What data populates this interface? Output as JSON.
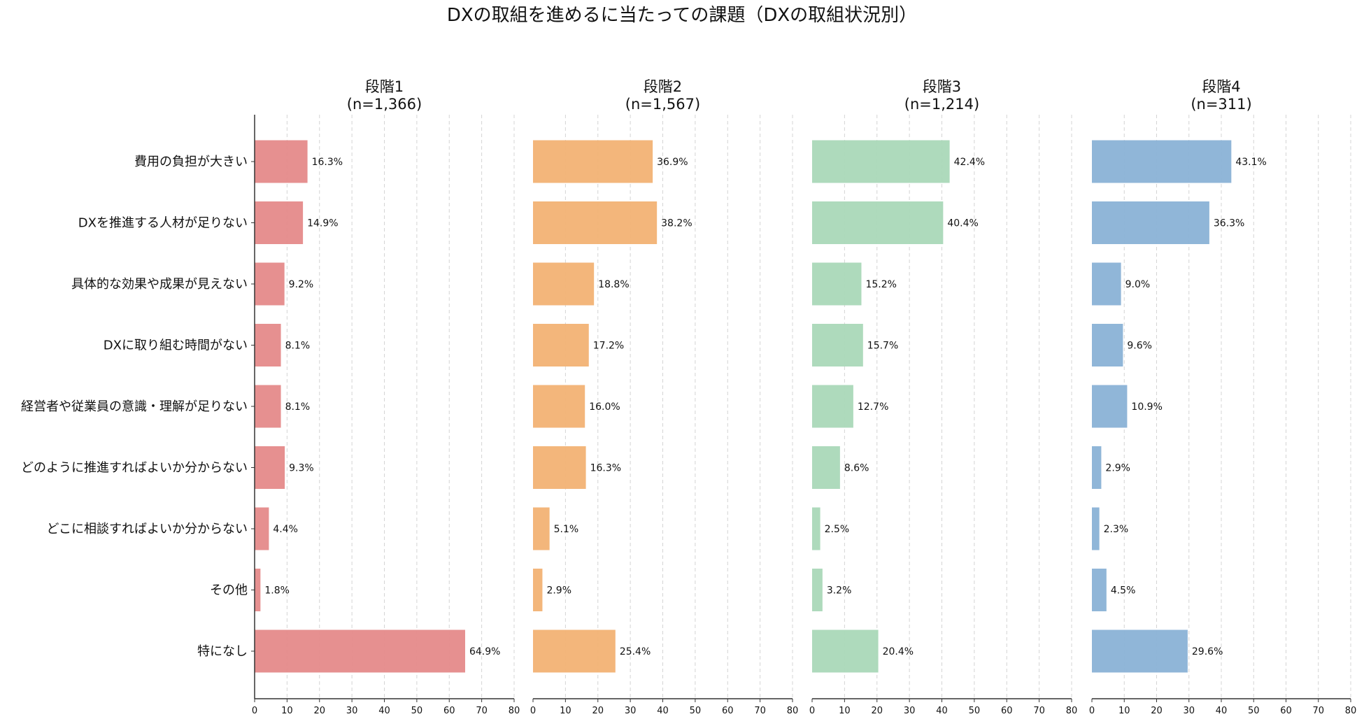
{
  "chart_data": {
    "type": "bar",
    "orientation": "horizontal",
    "title": "DXの取組を進めるに当たっての課題（DXの取組状況別）",
    "categories": [
      "費用の負担が大きい",
      "DXを推進する人材が足りない",
      "具体的な効果や成果が見えない",
      "DXに取り組む時間がない",
      "経営者や従業員の意識・理解が足りない",
      "どのように推進すればよいか分からない",
      "どこに相談すればよいか分からない",
      "その他",
      "特になし"
    ],
    "xlim": [
      0,
      80
    ],
    "xticks": [
      0,
      10,
      20,
      30,
      40,
      50,
      60,
      70,
      80
    ],
    "grid": "vertical dashed",
    "value_suffix": "%",
    "panels": [
      {
        "title": "段階1",
        "subtitle": "(n=1,366)",
        "color": "#e58a8a",
        "values": [
          16.3,
          14.9,
          9.2,
          8.1,
          8.1,
          9.3,
          4.4,
          1.8,
          64.9
        ]
      },
      {
        "title": "段階2",
        "subtitle": "(n=1,567)",
        "color": "#f2b274",
        "values": [
          36.9,
          38.2,
          18.8,
          17.2,
          16.0,
          16.3,
          5.1,
          2.9,
          25.4
        ]
      },
      {
        "title": "段階3",
        "subtitle": "(n=1,214)",
        "color": "#aad8b8",
        "values": [
          42.4,
          40.4,
          15.2,
          15.7,
          12.7,
          8.6,
          2.5,
          3.2,
          20.4
        ]
      },
      {
        "title": "段階4",
        "subtitle": "(n=311)",
        "color": "#8ab2d6",
        "values": [
          43.1,
          36.3,
          9.0,
          9.6,
          10.9,
          2.9,
          2.3,
          4.5,
          29.6
        ]
      }
    ]
  }
}
